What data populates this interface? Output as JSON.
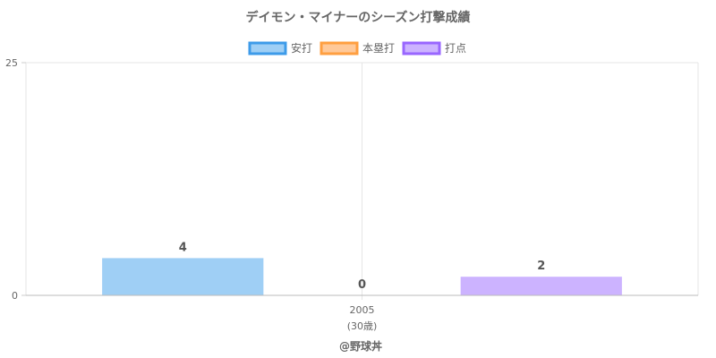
{
  "chart_data": {
    "type": "bar",
    "title": "デイモン・マイナーのシーズン打撃成績",
    "categories": [
      "2005"
    ],
    "category_sublabels": [
      "(30歳)"
    ],
    "series": [
      {
        "name": "安打",
        "values": [
          4
        ],
        "fill": "#9fcff5",
        "stroke": "#3d9be9"
      },
      {
        "name": "本塁打",
        "values": [
          0
        ],
        "fill": "#ffc999",
        "stroke": "#ff9f40"
      },
      {
        "name": "打点",
        "values": [
          2
        ],
        "fill": "#ccb3ff",
        "stroke": "#9966ff"
      }
    ],
    "ylim": [
      0,
      25
    ],
    "y_ticks": [
      0,
      25
    ],
    "grid": true,
    "legend_position": "top",
    "xlabel": "",
    "ylabel": ""
  },
  "footer": {
    "credit": "@野球丼"
  }
}
